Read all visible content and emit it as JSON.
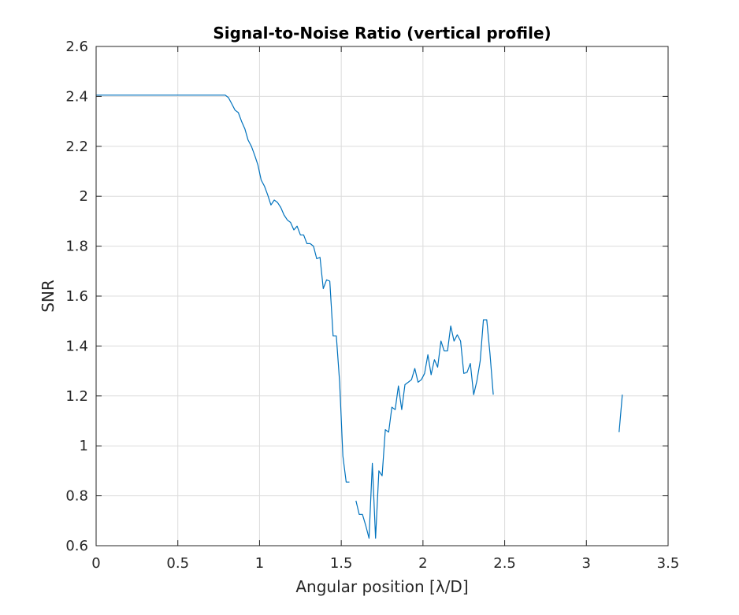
{
  "chart_data": {
    "type": "line",
    "title": "Signal-to-Noise Ratio (vertical profile)",
    "xlabel": "Angular position [λ/D]",
    "ylabel": "SNR",
    "xlim": [
      0,
      3.5
    ],
    "ylim": [
      0.6,
      2.6
    ],
    "xticks": [
      "0",
      "0.5",
      "1",
      "1.5",
      "2",
      "2.5",
      "3",
      "3.5"
    ],
    "yticks": [
      "0.6",
      "0.8",
      "1",
      "1.2",
      "1.4",
      "1.6",
      "1.8",
      "2",
      "2.2",
      "2.4",
      "2.6"
    ],
    "grid": true,
    "line_color": "#0072bd",
    "segments": [
      [
        [
          0,
          2.405
        ],
        [
          0.79,
          2.405
        ],
        [
          0.81,
          2.395
        ],
        [
          0.83,
          2.37
        ],
        [
          0.85,
          2.345
        ],
        [
          0.87,
          2.335
        ],
        [
          0.89,
          2.3
        ],
        [
          0.91,
          2.27
        ],
        [
          0.93,
          2.225
        ],
        [
          0.95,
          2.2
        ],
        [
          0.97,
          2.165
        ],
        [
          0.99,
          2.125
        ],
        [
          1.01,
          2.065
        ],
        [
          1.03,
          2.04
        ],
        [
          1.05,
          2.005
        ],
        [
          1.07,
          1.965
        ],
        [
          1.09,
          1.985
        ],
        [
          1.11,
          1.975
        ],
        [
          1.13,
          1.955
        ],
        [
          1.15,
          1.925
        ],
        [
          1.17,
          1.905
        ],
        [
          1.19,
          1.895
        ],
        [
          1.21,
          1.865
        ],
        [
          1.23,
          1.88
        ],
        [
          1.25,
          1.845
        ],
        [
          1.27,
          1.845
        ],
        [
          1.29,
          1.81
        ],
        [
          1.31,
          1.81
        ],
        [
          1.33,
          1.8
        ],
        [
          1.35,
          1.75
        ],
        [
          1.37,
          1.755
        ],
        [
          1.39,
          1.63
        ],
        [
          1.41,
          1.665
        ],
        [
          1.43,
          1.66
        ],
        [
          1.45,
          1.44
        ],
        [
          1.47,
          1.44
        ],
        [
          1.49,
          1.255
        ],
        [
          1.51,
          0.96
        ],
        [
          1.53,
          0.855
        ],
        [
          1.55,
          0.855
        ]
      ],
      [
        [
          1.59,
          0.78
        ],
        [
          1.61,
          0.725
        ],
        [
          1.63,
          0.725
        ],
        [
          1.65,
          0.68
        ],
        [
          1.67,
          0.63
        ],
        [
          1.69,
          0.93
        ],
        [
          1.71,
          0.63
        ],
        [
          1.73,
          0.9
        ],
        [
          1.75,
          0.88
        ],
        [
          1.77,
          1.065
        ],
        [
          1.79,
          1.055
        ],
        [
          1.81,
          1.155
        ],
        [
          1.83,
          1.145
        ],
        [
          1.85,
          1.24
        ],
        [
          1.87,
          1.145
        ],
        [
          1.89,
          1.245
        ],
        [
          1.91,
          1.255
        ],
        [
          1.93,
          1.265
        ],
        [
          1.95,
          1.31
        ],
        [
          1.97,
          1.255
        ],
        [
          1.99,
          1.265
        ],
        [
          2.01,
          1.29
        ],
        [
          2.03,
          1.365
        ],
        [
          2.05,
          1.285
        ],
        [
          2.07,
          1.345
        ],
        [
          2.09,
          1.315
        ],
        [
          2.11,
          1.42
        ],
        [
          2.13,
          1.38
        ],
        [
          2.15,
          1.38
        ],
        [
          2.17,
          1.48
        ],
        [
          2.19,
          1.42
        ],
        [
          2.21,
          1.445
        ],
        [
          2.23,
          1.42
        ],
        [
          2.25,
          1.29
        ],
        [
          2.27,
          1.295
        ],
        [
          2.29,
          1.33
        ],
        [
          2.31,
          1.205
        ],
        [
          2.33,
          1.26
        ],
        [
          2.35,
          1.34
        ],
        [
          2.37,
          1.505
        ],
        [
          2.39,
          1.505
        ],
        [
          2.41,
          1.37
        ],
        [
          2.43,
          1.205
        ]
      ],
      [
        [
          3.2,
          1.055
        ],
        [
          3.22,
          1.205
        ]
      ]
    ]
  }
}
